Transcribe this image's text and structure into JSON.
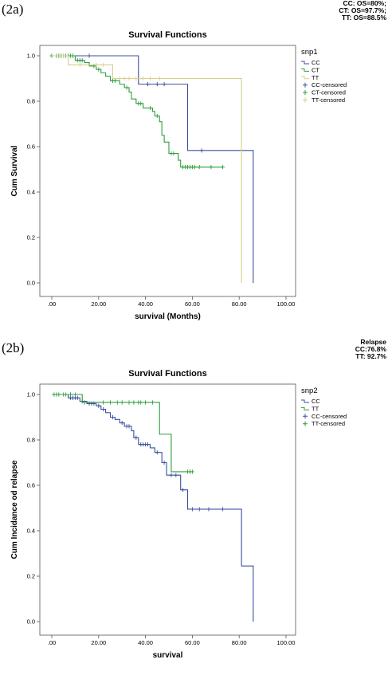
{
  "chart_data": [
    {
      "type": "line",
      "panel_label": "(2a)",
      "stats": [
        "CC: OS=80%;",
        "CT: OS=97.7%;",
        "TT: OS=88.5%"
      ],
      "title": "Survival Functions",
      "xlabel": "survival (Months)",
      "ylabel": "Cum Survival",
      "xlim": [
        0,
        100
      ],
      "ylim": [
        0,
        1
      ],
      "xticks": [
        0,
        20,
        40,
        60,
        80,
        100
      ],
      "xtick_labels": [
        ".00",
        "20.00",
        "40.00",
        "60.00",
        "80.00",
        "100.00"
      ],
      "yticks": [
        0,
        0.2,
        0.4,
        0.6,
        0.8,
        1.0
      ],
      "ytick_labels": [
        "0.0",
        "0.2",
        "0.4",
        "0.6",
        "0.8",
        "1.0"
      ],
      "legend_title": "snp1",
      "legend_placement": "right",
      "legend": [
        {
          "label": "CC",
          "color": "#3c4fa0",
          "marker": "line"
        },
        {
          "label": "CT",
          "color": "#2e9e3c",
          "marker": "line"
        },
        {
          "label": "TT",
          "color": "#d6d08a",
          "marker": "line"
        },
        {
          "label": "CC-censored",
          "color": "#3c4fa0",
          "marker": "plus"
        },
        {
          "label": "CT-censored",
          "color": "#2e9e3c",
          "marker": "plus"
        },
        {
          "label": "TT-censored",
          "color": "#d6d08a",
          "marker": "plus"
        }
      ],
      "series": [
        {
          "name": "CC",
          "color": "#3c4fa0",
          "steps": [
            [
              0,
              1.0
            ],
            [
              37,
              0.875
            ],
            [
              58,
              0.583
            ],
            [
              86,
              0.0
            ]
          ],
          "end": 86,
          "censored": [
            [
              16,
              1.0
            ],
            [
              41,
              0.875
            ],
            [
              45,
              0.875
            ],
            [
              48,
              0.875
            ],
            [
              64,
              0.583
            ]
          ]
        },
        {
          "name": "CT",
          "color": "#2e9e3c",
          "steps": [
            [
              0,
              1.0
            ],
            [
              10,
              0.98
            ],
            [
              14,
              0.97
            ],
            [
              16,
              0.955
            ],
            [
              19,
              0.94
            ],
            [
              21,
              0.925
            ],
            [
              23,
              0.91
            ],
            [
              25,
              0.89
            ],
            [
              29,
              0.875
            ],
            [
              31,
              0.86
            ],
            [
              33,
              0.84
            ],
            [
              34,
              0.81
            ],
            [
              36,
              0.79
            ],
            [
              39,
              0.77
            ],
            [
              43,
              0.755
            ],
            [
              44,
              0.735
            ],
            [
              46,
              0.71
            ],
            [
              47,
              0.65
            ],
            [
              48,
              0.62
            ],
            [
              50,
              0.57
            ],
            [
              54,
              0.54
            ],
            [
              55,
              0.51
            ]
          ],
          "end": 73,
          "censored": [
            [
              0,
              1.0
            ],
            [
              2,
              1.0
            ],
            [
              3,
              1.0
            ],
            [
              4,
              1.0
            ],
            [
              5,
              1.0
            ],
            [
              6,
              1.0
            ],
            [
              7,
              1.0
            ],
            [
              8,
              1.0
            ],
            [
              9,
              1.0
            ],
            [
              11,
              0.98
            ],
            [
              12,
              0.98
            ],
            [
              13,
              0.98
            ],
            [
              18,
              0.955
            ],
            [
              20,
              0.94
            ],
            [
              26,
              0.89
            ],
            [
              27,
              0.89
            ],
            [
              32,
              0.86
            ],
            [
              37,
              0.79
            ],
            [
              38,
              0.79
            ],
            [
              42,
              0.77
            ],
            [
              45,
              0.735
            ],
            [
              51,
              0.57
            ],
            [
              52,
              0.57
            ],
            [
              56,
              0.51
            ],
            [
              57,
              0.51
            ],
            [
              58,
              0.51
            ],
            [
              59,
              0.51
            ],
            [
              60,
              0.51
            ],
            [
              61,
              0.51
            ],
            [
              63,
              0.51
            ],
            [
              68,
              0.51
            ],
            [
              73,
              0.51
            ]
          ]
        },
        {
          "name": "TT",
          "color": "#d6d08a",
          "steps": [
            [
              0,
              1.0
            ],
            [
              7,
              0.96
            ],
            [
              26,
              0.9
            ],
            [
              81,
              0.0
            ]
          ],
          "end": 81,
          "censored": [
            [
              5,
              1.0
            ],
            [
              12,
              0.96
            ],
            [
              19,
              0.96
            ],
            [
              22,
              0.96
            ],
            [
              29,
              0.9
            ],
            [
              31,
              0.9
            ],
            [
              33,
              0.9
            ],
            [
              36,
              0.9
            ],
            [
              39,
              0.9
            ],
            [
              42,
              0.9
            ],
            [
              46,
              0.9
            ]
          ]
        }
      ]
    },
    {
      "type": "line",
      "panel_label": "(2b)",
      "stats": [
        "Relapse",
        "CC:76.8%",
        "TT: 92.7%"
      ],
      "title": "Survival Functions",
      "xlabel": "survival",
      "ylabel": "Cum Incidance od relapse",
      "xlim": [
        0,
        100
      ],
      "ylim": [
        0,
        1
      ],
      "xticks": [
        0,
        20,
        40,
        60,
        80,
        100
      ],
      "xtick_labels": [
        ".00",
        "20.00",
        "40.00",
        "60.00",
        "80.00",
        "100.00"
      ],
      "yticks": [
        0,
        0.2,
        0.4,
        0.6,
        0.8,
        1.0
      ],
      "ytick_labels": [
        "0.0",
        "0.2",
        "0.4",
        "0.6",
        "0.8",
        "1.0"
      ],
      "legend_title": "snp2",
      "legend_placement": "right",
      "legend": [
        {
          "label": "CC",
          "color": "#3c4fa0",
          "marker": "line"
        },
        {
          "label": "TT",
          "color": "#2e9e3c",
          "marker": "line"
        },
        {
          "label": "CC-censored",
          "color": "#3c4fa0",
          "marker": "plus"
        },
        {
          "label": "TT-censored",
          "color": "#2e9e3c",
          "marker": "plus"
        }
      ],
      "series": [
        {
          "name": "CC",
          "color": "#3c4fa0",
          "steps": [
            [
              0,
              1.0
            ],
            [
              7,
              0.985
            ],
            [
              12,
              0.97
            ],
            [
              15,
              0.96
            ],
            [
              19,
              0.95
            ],
            [
              21,
              0.935
            ],
            [
              23,
              0.92
            ],
            [
              25,
              0.9
            ],
            [
              27,
              0.89
            ],
            [
              29,
              0.875
            ],
            [
              31,
              0.86
            ],
            [
              34,
              0.84
            ],
            [
              35,
              0.81
            ],
            [
              37,
              0.78
            ],
            [
              42,
              0.765
            ],
            [
              44,
              0.745
            ],
            [
              47,
              0.7
            ],
            [
              49,
              0.645
            ],
            [
              55,
              0.58
            ],
            [
              58,
              0.495
            ],
            [
              81,
              0.245
            ],
            [
              86,
              0.0
            ]
          ],
          "end": 86,
          "censored": [
            [
              8,
              0.985
            ],
            [
              9,
              0.985
            ],
            [
              10,
              0.985
            ],
            [
              11,
              0.985
            ],
            [
              13,
              0.97
            ],
            [
              16,
              0.96
            ],
            [
              17,
              0.96
            ],
            [
              18,
              0.96
            ],
            [
              20,
              0.95
            ],
            [
              22,
              0.935
            ],
            [
              26,
              0.9
            ],
            [
              30,
              0.875
            ],
            [
              32,
              0.86
            ],
            [
              33,
              0.86
            ],
            [
              36,
              0.81
            ],
            [
              38,
              0.78
            ],
            [
              39,
              0.78
            ],
            [
              40,
              0.78
            ],
            [
              41,
              0.78
            ],
            [
              45,
              0.745
            ],
            [
              48,
              0.7
            ],
            [
              51,
              0.645
            ],
            [
              53,
              0.645
            ],
            [
              56,
              0.58
            ],
            [
              60,
              0.495
            ],
            [
              63,
              0.495
            ],
            [
              67,
              0.495
            ],
            [
              73,
              0.495
            ]
          ]
        },
        {
          "name": "TT",
          "color": "#2e9e3c",
          "steps": [
            [
              0,
              1.0
            ],
            [
              13,
              0.965
            ],
            [
              46,
              0.825
            ],
            [
              51,
              0.66
            ]
          ],
          "end": 60,
          "censored": [
            [
              1,
              1.0
            ],
            [
              2,
              1.0
            ],
            [
              3,
              1.0
            ],
            [
              5,
              1.0
            ],
            [
              6,
              1.0
            ],
            [
              8,
              1.0
            ],
            [
              10,
              1.0
            ],
            [
              14,
              0.965
            ],
            [
              22,
              0.965
            ],
            [
              25,
              0.965
            ],
            [
              28,
              0.965
            ],
            [
              30,
              0.965
            ],
            [
              33,
              0.965
            ],
            [
              35,
              0.965
            ],
            [
              37,
              0.965
            ],
            [
              38,
              0.965
            ],
            [
              40,
              0.965
            ],
            [
              43,
              0.965
            ],
            [
              58,
              0.66
            ],
            [
              59,
              0.66
            ],
            [
              60,
              0.66
            ]
          ]
        }
      ]
    }
  ]
}
